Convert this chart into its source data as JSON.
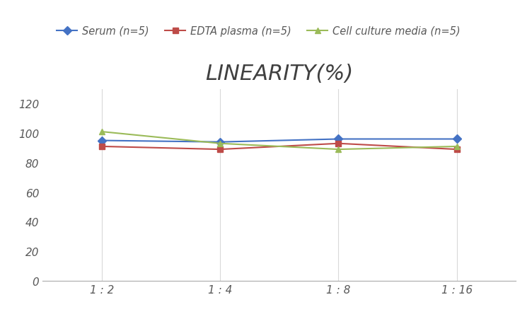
{
  "title": "LINEARITY(%)",
  "x_labels": [
    "1 : 2",
    "1 : 4",
    "1 : 8",
    "1 : 16"
  ],
  "x_positions": [
    0,
    1,
    2,
    3
  ],
  "series": [
    {
      "label": "Serum (n=5)",
      "values": [
        95,
        94,
        96,
        96
      ],
      "color": "#4472C4",
      "marker": "D",
      "marker_color": "#4472C4"
    },
    {
      "label": "EDTA plasma (n=5)",
      "values": [
        91,
        89,
        93,
        89
      ],
      "color": "#BE4B48",
      "marker": "s",
      "marker_color": "#BE4B48"
    },
    {
      "label": "Cell culture media (n=5)",
      "values": [
        101,
        93,
        89,
        91
      ],
      "color": "#9BBB59",
      "marker": "^",
      "marker_color": "#9BBB59"
    }
  ],
  "ylim": [
    0,
    130
  ],
  "yticks": [
    0,
    20,
    40,
    60,
    80,
    100,
    120
  ],
  "grid_color": "#D9D9D9",
  "background_color": "#FFFFFF",
  "title_fontsize": 22,
  "title_color": "#404040",
  "legend_fontsize": 10.5,
  "tick_fontsize": 11,
  "tick_color": "#595959"
}
